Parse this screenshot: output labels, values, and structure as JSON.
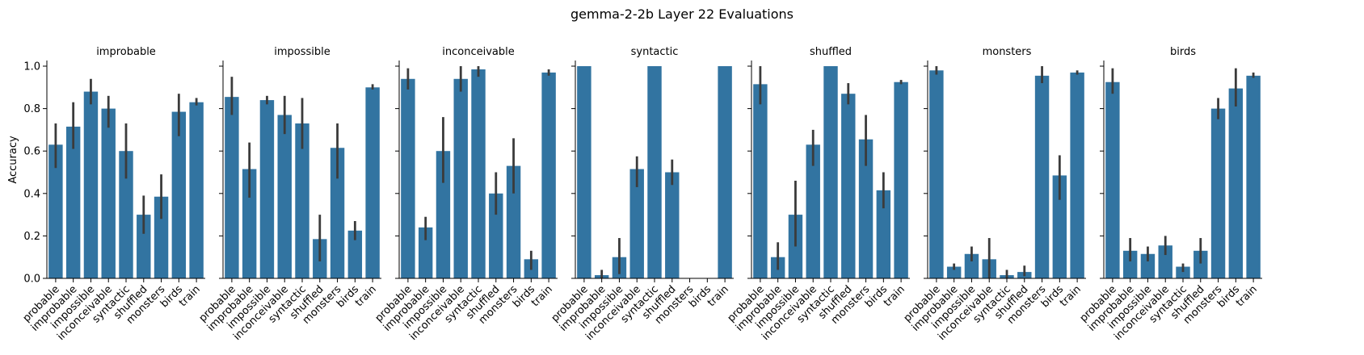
{
  "suptitle": "gemma-2-2b Layer 22 Evaluations",
  "ylabel": "Accuracy",
  "yticks": [
    "0.0",
    "0.2",
    "0.4",
    "0.6",
    "0.8",
    "1.0"
  ],
  "categories": [
    "probable",
    "improbable",
    "impossible",
    "inconceivable",
    "syntactic",
    "shuffled",
    "monsters",
    "birds",
    "train"
  ],
  "bar_color": "#3274a1",
  "errorbar_color": "#3b3b3b",
  "chart_data": [
    {
      "type": "bar",
      "title": "improbable",
      "ylim": [
        0,
        1
      ],
      "values": [
        0.63,
        0.715,
        0.88,
        0.8,
        0.6,
        0.3,
        0.385,
        0.785,
        0.83
      ],
      "err_low": [
        0.52,
        0.61,
        0.82,
        0.71,
        0.47,
        0.21,
        0.28,
        0.67,
        0.815
      ],
      "err_high": [
        0.73,
        0.83,
        0.94,
        0.86,
        0.73,
        0.39,
        0.49,
        0.87,
        0.85
      ]
    },
    {
      "type": "bar",
      "title": "impossible",
      "ylim": [
        0,
        1
      ],
      "values": [
        0.855,
        0.515,
        0.84,
        0.77,
        0.73,
        0.185,
        0.615,
        0.225,
        0.9
      ],
      "err_low": [
        0.77,
        0.38,
        0.82,
        0.68,
        0.61,
        0.08,
        0.47,
        0.18,
        0.89
      ],
      "err_high": [
        0.95,
        0.64,
        0.86,
        0.86,
        0.85,
        0.3,
        0.73,
        0.27,
        0.915
      ]
    },
    {
      "type": "bar",
      "title": "inconceivable",
      "ylim": [
        0,
        1
      ],
      "values": [
        0.94,
        0.24,
        0.6,
        0.94,
        0.985,
        0.4,
        0.53,
        0.09,
        0.97
      ],
      "err_low": [
        0.89,
        0.18,
        0.45,
        0.88,
        0.95,
        0.3,
        0.4,
        0.04,
        0.955
      ],
      "err_high": [
        0.99,
        0.29,
        0.76,
        1.0,
        1.0,
        0.5,
        0.66,
        0.13,
        0.985
      ]
    },
    {
      "type": "bar",
      "title": "syntactic",
      "ylim": [
        0,
        1
      ],
      "values": [
        1.0,
        0.015,
        0.1,
        0.515,
        1.0,
        0.5,
        0.0,
        0.0,
        1.0
      ],
      "err_low": [
        1.0,
        0.0,
        0.02,
        0.43,
        1.0,
        0.44,
        0.0,
        0.0,
        1.0
      ],
      "err_high": [
        1.0,
        0.04,
        0.19,
        0.575,
        1.0,
        0.56,
        0.0,
        0.0,
        1.0
      ]
    },
    {
      "type": "bar",
      "title": "shuffled",
      "ylim": [
        0,
        1
      ],
      "values": [
        0.915,
        0.1,
        0.3,
        0.63,
        1.0,
        0.87,
        0.655,
        0.415,
        0.925
      ],
      "err_low": [
        0.82,
        0.04,
        0.15,
        0.53,
        1.0,
        0.82,
        0.53,
        0.33,
        0.915
      ],
      "err_high": [
        1.0,
        0.17,
        0.46,
        0.7,
        1.0,
        0.92,
        0.77,
        0.5,
        0.935
      ]
    },
    {
      "type": "bar",
      "title": "monsters",
      "ylim": [
        0,
        1
      ],
      "values": [
        0.98,
        0.055,
        0.115,
        0.09,
        0.015,
        0.03,
        0.955,
        0.485,
        0.97
      ],
      "err_low": [
        0.96,
        0.04,
        0.08,
        0.0,
        0.0,
        0.01,
        0.92,
        0.37,
        0.96
      ],
      "err_high": [
        1.0,
        0.07,
        0.15,
        0.19,
        0.04,
        0.06,
        1.0,
        0.58,
        0.98
      ]
    },
    {
      "type": "bar",
      "title": "birds",
      "ylim": [
        0,
        1
      ],
      "values": [
        0.925,
        0.13,
        0.115,
        0.155,
        0.055,
        0.13,
        0.8,
        0.895,
        0.955
      ],
      "err_low": [
        0.87,
        0.08,
        0.08,
        0.11,
        0.03,
        0.07,
        0.75,
        0.81,
        0.945
      ],
      "err_high": [
        0.99,
        0.19,
        0.15,
        0.2,
        0.07,
        0.19,
        0.85,
        0.99,
        0.97
      ]
    }
  ]
}
